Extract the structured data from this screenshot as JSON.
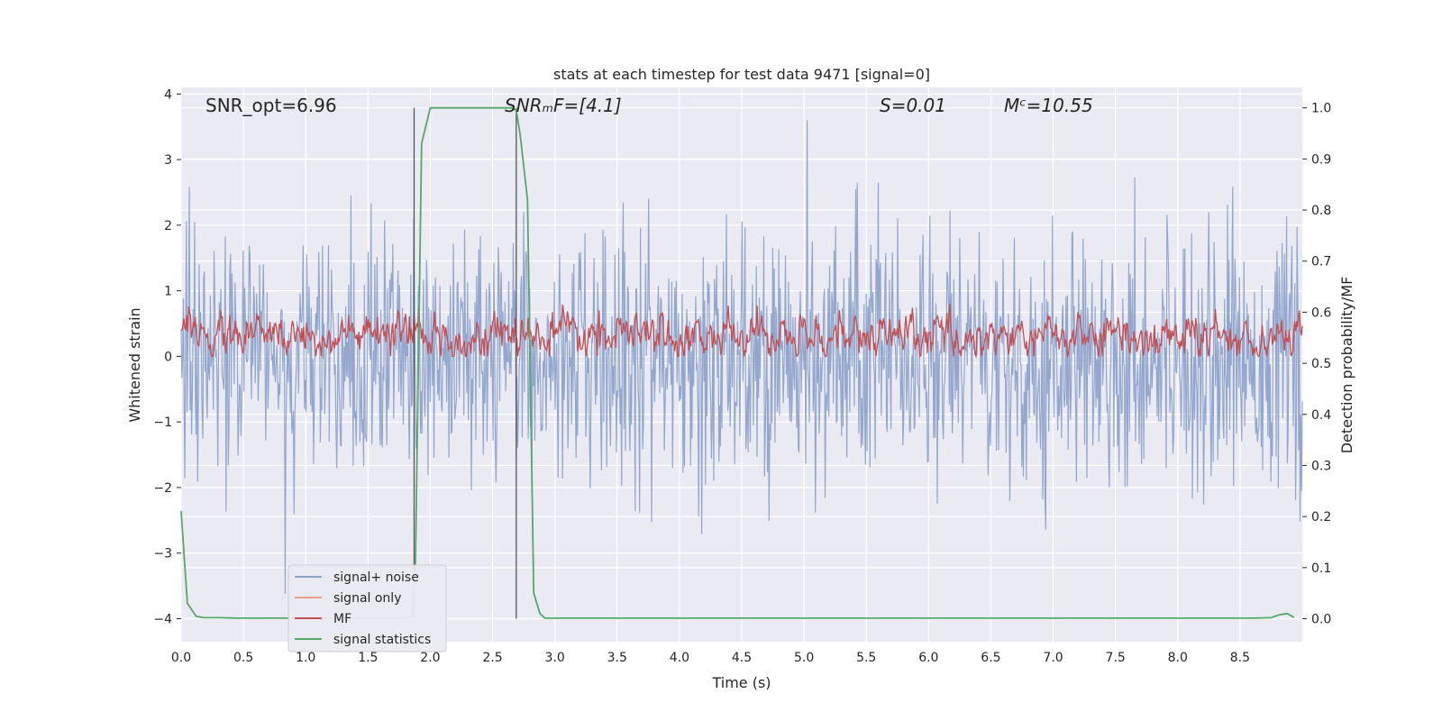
{
  "chart_data": {
    "type": "line",
    "title": "stats at each timestep for test data 9471 [signal=0]",
    "xlabel": "Time (s)",
    "ylabel": "Whitened strain",
    "ylabel_right": "Detection probability/MF",
    "xlim": [
      0.0,
      9.0
    ],
    "ylim": [
      -4.35,
      4.1
    ],
    "ylim_right": [
      -0.045,
      1.04
    ],
    "x_ticks": [
      0.0,
      0.5,
      1.0,
      1.5,
      2.0,
      2.5,
      3.0,
      3.5,
      4.0,
      4.5,
      5.0,
      5.5,
      6.0,
      6.5,
      7.0,
      7.5,
      8.0,
      8.5
    ],
    "x_tick_labels": [
      "0.0",
      "0.5",
      "1.0",
      "1.5",
      "2.0",
      "2.5",
      "3.0",
      "3.5",
      "4.0",
      "4.5",
      "5.0",
      "5.5",
      "6.0",
      "6.5",
      "7.0",
      "7.5",
      "8.0",
      "8.5"
    ],
    "y_ticks": [
      4,
      3,
      2,
      1,
      0,
      -1,
      -2,
      -3,
      -4
    ],
    "y_tick_labels": [
      "4",
      "3",
      "2",
      "1",
      "0",
      "−1",
      "−2",
      "−3",
      "−4"
    ],
    "y_right_ticks": [
      1.0,
      0.9,
      0.8,
      0.7,
      0.6,
      0.5,
      0.4,
      0.3,
      0.2,
      0.1,
      0.0
    ],
    "y_right_tick_labels": [
      "1.0",
      "0.9",
      "0.8",
      "0.7",
      "0.6",
      "0.5",
      "0.4",
      "0.3",
      "0.2",
      "0.1",
      "0.0"
    ],
    "grid": true,
    "annotations": [
      {
        "id": "snr-opt",
        "text": "SNR_opt=6.96",
        "x": 0.2
      },
      {
        "id": "snr-mf",
        "text": "SNRₘF=[4.1]",
        "x": 2.6
      },
      {
        "id": "spin",
        "text": "S=0.01",
        "x": 5.6
      },
      {
        "id": "chirp-mass",
        "text": "Mᶜ=10.55",
        "x": 6.6
      }
    ],
    "vertical_lines": [
      1.87,
      2.69
    ],
    "series": [
      {
        "name": "signal+ noise",
        "color": "#8ea3cb",
        "axis": "left",
        "description": "whitened strain noise, roughly within -3 to 3"
      },
      {
        "name": "signal only",
        "color": "#e8a088",
        "axis": "left",
        "values": []
      },
      {
        "name": "MF",
        "color": "#c44e52",
        "axis": "left",
        "description": "matched filter output around 0.1 to 0.8"
      },
      {
        "name": "signal statistics",
        "color": "#55a868",
        "axis": "right",
        "x": [
          0.0,
          0.05,
          0.12,
          0.18,
          0.3,
          0.45,
          0.6,
          0.9,
          1.2,
          1.5,
          1.8,
          1.85,
          1.88,
          1.93,
          2.0,
          2.1,
          2.3,
          2.5,
          2.65,
          2.69,
          2.72,
          2.78,
          2.83,
          2.88,
          2.92,
          3.0,
          4.0,
          5.0,
          6.0,
          7.0,
          8.0,
          8.6,
          8.75,
          8.82,
          8.88,
          8.93
        ],
        "values": [
          0.21,
          0.03,
          0.005,
          0.002,
          0.002,
          0.001,
          0.001,
          0.001,
          0.001,
          0.001,
          0.002,
          0.005,
          0.1,
          0.93,
          1.0,
          1.0,
          1.0,
          1.0,
          1.0,
          0.995,
          0.95,
          0.82,
          0.05,
          0.01,
          0.001,
          0.001,
          0.001,
          0.001,
          0.001,
          0.001,
          0.001,
          0.001,
          0.002,
          0.008,
          0.01,
          0.003
        ]
      }
    ],
    "legend": {
      "position": "lower-left",
      "entries": [
        {
          "label": "signal+ noise",
          "color": "#8ea3cb"
        },
        {
          "label": "signal only",
          "color": "#e8a088"
        },
        {
          "label": "MF",
          "color": "#c44e52"
        },
        {
          "label": "signal statistics",
          "color": "#55a868"
        }
      ]
    }
  }
}
